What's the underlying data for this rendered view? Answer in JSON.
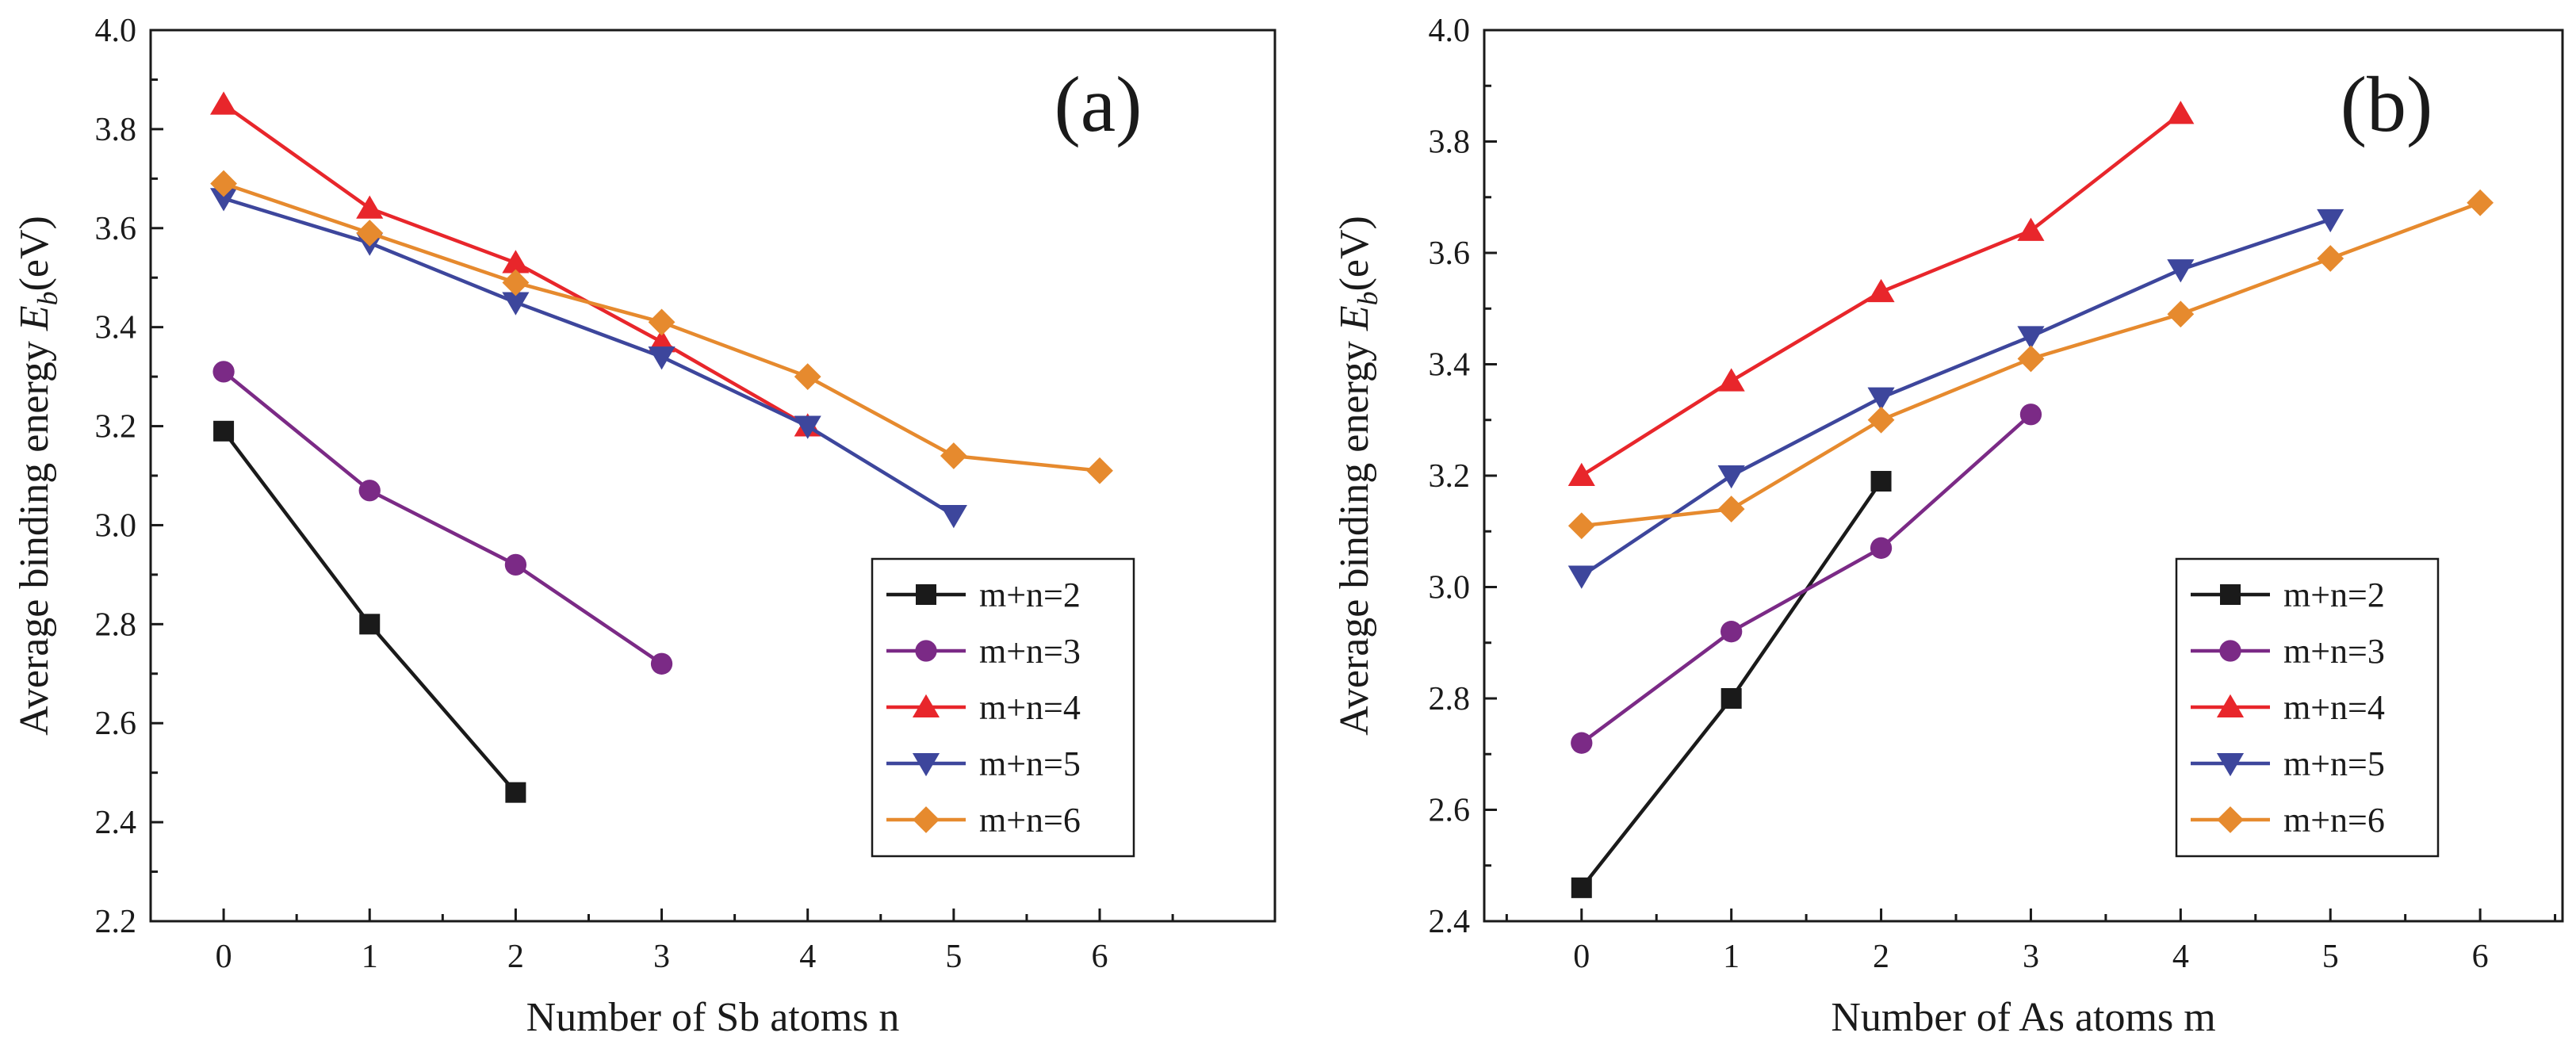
{
  "figure": {
    "panels": [
      {
        "panel_label": "(a)",
        "ylabel_main": "Average binding energy ",
        "ylabel_sym": "E",
        "ylabel_sub": "b",
        "ylabel_unit": "(eV)"
      },
      {
        "panel_label": "(b)",
        "ylabel_main": "Average binding energy ",
        "ylabel_sym": "E",
        "ylabel_sub": "b",
        "ylabel_unit": "(eV)"
      }
    ]
  },
  "chart_data": [
    {
      "type": "line",
      "panel": "(a)",
      "xlabel": "Number of Sb atoms n",
      "ylabel": "Average binding energy Eb(eV)",
      "xlim": [
        -0.5,
        7.2
      ],
      "ylim": [
        2.2,
        4.0
      ],
      "xticks": [
        0,
        1,
        2,
        3,
        4,
        5,
        6
      ],
      "yticks": [
        2.2,
        2.4,
        2.6,
        2.8,
        3.0,
        3.2,
        3.4,
        3.6,
        3.8,
        4.0
      ],
      "ytick_labels": [
        "2.2",
        "2.4",
        "2.6",
        "2.8",
        "3.0",
        "3.2",
        "3.4",
        "3.6",
        "3.8",
        "4.0"
      ],
      "legend_position": "lower-right",
      "series": [
        {
          "name": "m+n=2",
          "color": "#1a1a1a",
          "marker": "square",
          "x": [
            0,
            1,
            2
          ],
          "values": [
            3.19,
            2.8,
            2.46
          ]
        },
        {
          "name": "m+n=3",
          "color": "#7b2a86",
          "marker": "circle",
          "x": [
            0,
            1,
            2,
            3
          ],
          "values": [
            3.31,
            3.07,
            2.92,
            2.72
          ]
        },
        {
          "name": "m+n=4",
          "color": "#e8262b",
          "marker": "triangle-up",
          "x": [
            0,
            1,
            2,
            3,
            4
          ],
          "values": [
            3.85,
            3.64,
            3.53,
            3.37,
            3.2
          ]
        },
        {
          "name": "m+n=5",
          "color": "#3d469c",
          "marker": "triangle-down",
          "x": [
            0,
            1,
            2,
            3,
            4,
            5
          ],
          "values": [
            3.66,
            3.57,
            3.45,
            3.34,
            3.2,
            3.02
          ]
        },
        {
          "name": "m+n=6",
          "color": "#e68a2e",
          "marker": "diamond",
          "x": [
            0,
            1,
            2,
            3,
            4,
            5,
            6
          ],
          "values": [
            3.69,
            3.59,
            3.49,
            3.41,
            3.3,
            3.14,
            3.11
          ]
        }
      ]
    },
    {
      "type": "line",
      "panel": "(b)",
      "xlabel": "Number of As atoms m",
      "ylabel": "Average binding energy Eb(eV)",
      "xlim": [
        -0.65,
        6.55
      ],
      "ylim": [
        2.4,
        4.0
      ],
      "xticks": [
        0,
        1,
        2,
        3,
        4,
        5,
        6
      ],
      "yticks": [
        2.4,
        2.6,
        2.8,
        3.0,
        3.2,
        3.4,
        3.6,
        3.8,
        4.0
      ],
      "ytick_labels": [
        "2.4",
        "2.6",
        "2.8",
        "3.0",
        "3.2",
        "3.4",
        "3.6",
        "3.8",
        "4.0"
      ],
      "legend_position": "lower-right",
      "series": [
        {
          "name": "m+n=2",
          "color": "#1a1a1a",
          "marker": "square",
          "x": [
            0,
            1,
            2
          ],
          "values": [
            2.46,
            2.8,
            3.19
          ]
        },
        {
          "name": "m+n=3",
          "color": "#7b2a86",
          "marker": "circle",
          "x": [
            0,
            1,
            2,
            3
          ],
          "values": [
            2.72,
            2.92,
            3.07,
            3.31
          ]
        },
        {
          "name": "m+n=4",
          "color": "#e8262b",
          "marker": "triangle-up",
          "x": [
            0,
            1,
            2,
            3,
            4
          ],
          "values": [
            3.2,
            3.37,
            3.53,
            3.64,
            3.85
          ]
        },
        {
          "name": "m+n=5",
          "color": "#3d469c",
          "marker": "triangle-down",
          "x": [
            0,
            1,
            2,
            3,
            4,
            5
          ],
          "values": [
            3.02,
            3.2,
            3.34,
            3.45,
            3.57,
            3.66
          ]
        },
        {
          "name": "m+n=6",
          "color": "#e68a2e",
          "marker": "diamond",
          "x": [
            0,
            1,
            2,
            3,
            4,
            5,
            6
          ],
          "values": [
            3.11,
            3.14,
            3.3,
            3.41,
            3.49,
            3.59,
            3.69
          ]
        }
      ]
    }
  ]
}
